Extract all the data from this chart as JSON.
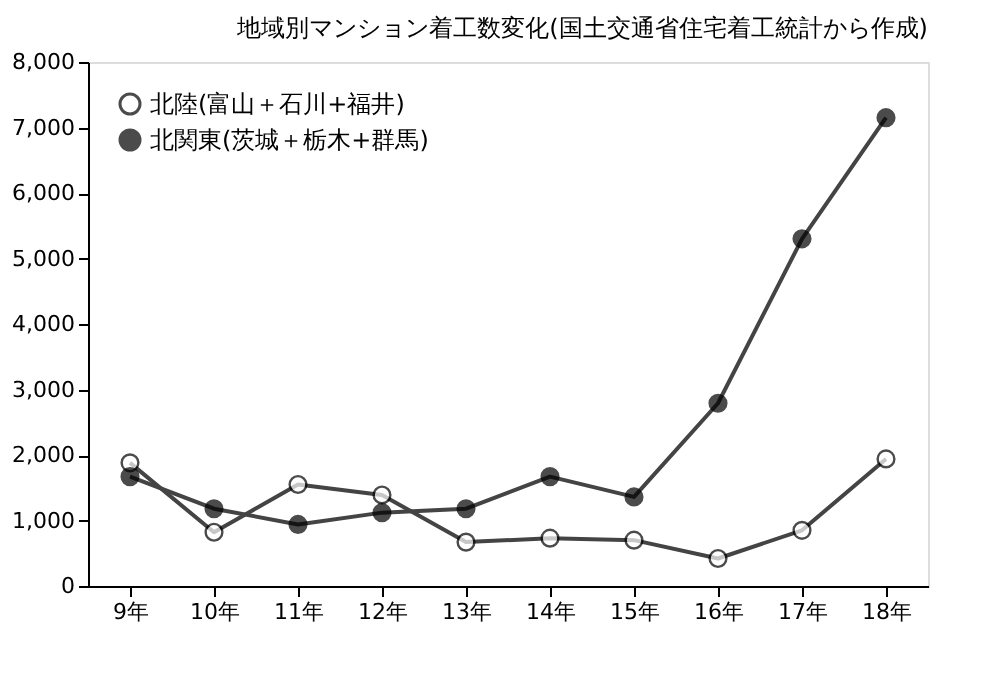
{
  "chart_data": {
    "type": "line",
    "title": "地域別マンション着工数変化(国土交通省住宅着工統計から作成)",
    "categories": [
      "9年",
      "10年",
      "11年",
      "12年",
      "13年",
      "14年",
      "15年",
      "16年",
      "17年",
      "18年"
    ],
    "series": [
      {
        "name": "北陸(富山＋石川+福井)",
        "color": "#ffffff",
        "values": [
          1880,
          820,
          1550,
          1390,
          670,
          730,
          700,
          420,
          850,
          1940
        ]
      },
      {
        "name": "北関東(茨城＋栃木+群馬)",
        "color": "#000000",
        "values": [
          1670,
          1180,
          940,
          1120,
          1180,
          1670,
          1360,
          2790,
          5300,
          7150
        ]
      }
    ],
    "ylim": [
      0,
      8000
    ],
    "yticks": [
      0,
      {
        "value": 1000,
        "label": "1,000"
      },
      {
        "value": 2000,
        "label": "2,000"
      },
      {
        "value": 3000,
        "label": "3,000"
      },
      {
        "value": 4000,
        "label": "4,000"
      },
      {
        "value": 5000,
        "label": "5,000"
      },
      {
        "value": 6000,
        "label": "6,000"
      },
      {
        "value": 7000,
        "label": "7,000"
      },
      {
        "value": 8000,
        "label": "8,000"
      }
    ],
    "grid": false,
    "legend": "top left",
    "marker": "circle",
    "line_style": "solid"
  }
}
